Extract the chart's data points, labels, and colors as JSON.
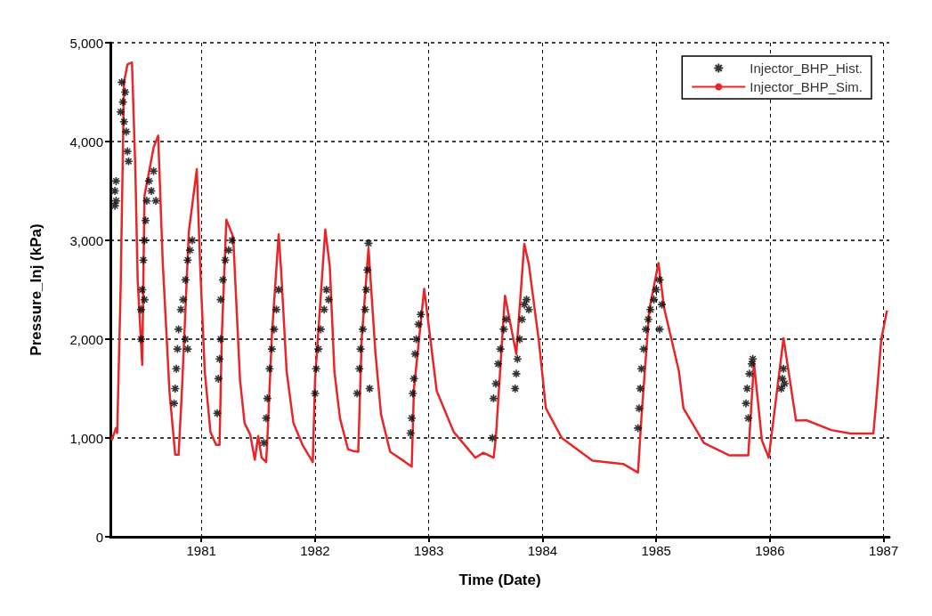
{
  "chart_data": {
    "type": "line",
    "xlabel": "Time (Date)",
    "ylabel": "Pressure_Inj (kPa)",
    "xlim": [
      1980.2,
      1987.05
    ],
    "xticks": [
      1981,
      1982,
      1983,
      1984,
      1985,
      1986,
      1987
    ],
    "ylim": [
      0,
      5000
    ],
    "yticks": [
      0,
      {
        "value": 1000,
        "label": "1,000"
      },
      {
        "value": 2000,
        "label": "2,000"
      },
      {
        "value": 3000,
        "label": "3,000"
      },
      {
        "value": 4000,
        "label": "4,000"
      },
      {
        "value": 5000,
        "label": "5,000"
      }
    ],
    "grid": true,
    "legend": "top right",
    "series": [
      {
        "name": "Injector_BHP_Hist.",
        "type": "scatter",
        "marker": "cross",
        "color": "#000000",
        "x": [
          1980.24,
          1980.24,
          1980.25,
          1980.25,
          1980.29,
          1980.3,
          1980.31,
          1980.32,
          1980.33,
          1980.34,
          1980.35,
          1980.36,
          1980.47,
          1980.47,
          1980.48,
          1980.49,
          1980.5,
          1980.51,
          1980.52,
          1980.54,
          1980.56,
          1980.58,
          1980.6,
          1980.5,
          1980.76,
          1980.77,
          1980.78,
          1980.79,
          1980.8,
          1980.82,
          1980.84,
          1980.86,
          1980.88,
          1980.9,
          1980.92,
          1980.86,
          1980.88,
          1981.14,
          1981.15,
          1981.16,
          1981.17,
          1981.17,
          1981.19,
          1981.21,
          1981.24,
          1981.27,
          1981.55,
          1981.57,
          1981.58,
          1981.6,
          1981.62,
          1981.64,
          1981.66,
          1981.68,
          1982.0,
          1982.01,
          1982.03,
          1982.05,
          1982.08,
          1982.1,
          1982.12,
          1982.37,
          1982.39,
          1982.4,
          1982.42,
          1982.44,
          1982.45,
          1982.46,
          1982.47,
          1982.48,
          1982.84,
          1982.85,
          1982.86,
          1982.87,
          1982.88,
          1982.89,
          1982.91,
          1982.93,
          1983.56,
          1983.57,
          1983.59,
          1983.61,
          1983.63,
          1983.66,
          1983.68,
          1983.76,
          1983.77,
          1983.78,
          1983.8,
          1983.82,
          1983.84,
          1983.86,
          1983.88,
          1984.84,
          1984.85,
          1984.86,
          1984.87,
          1984.89,
          1984.91,
          1984.93,
          1984.95,
          1984.98,
          1985.0,
          1985.03,
          1985.05,
          1985.03,
          1985.79,
          1985.8,
          1985.82,
          1985.84,
          1985.85,
          1985.81,
          1986.1,
          1986.11,
          1986.12,
          1986.13
        ],
        "values": [
          3350,
          3500,
          3600,
          3400,
          4300,
          4600,
          4400,
          4200,
          4500,
          4100,
          3900,
          3800,
          2000,
          2300,
          2500,
          2800,
          3000,
          3200,
          3400,
          3600,
          3500,
          3700,
          3400,
          2400,
          1350,
          1500,
          1700,
          1900,
          2100,
          2300,
          2400,
          2600,
          2800,
          2900,
          3000,
          2000,
          1900,
          1250,
          1600,
          1800,
          2000,
          2400,
          2600,
          2800,
          2900,
          3000,
          950,
          1200,
          1400,
          1700,
          1900,
          2100,
          2300,
          2500,
          1450,
          1700,
          1900,
          2100,
          2300,
          2500,
          2400,
          1450,
          1700,
          1900,
          2100,
          2300,
          2500,
          2700,
          2970,
          1500,
          1050,
          1200,
          1450,
          1600,
          1850,
          2000,
          2150,
          2250,
          1000,
          1400,
          1550,
          1750,
          1900,
          2100,
          2200,
          1500,
          1650,
          1800,
          2000,
          2200,
          2350,
          2400,
          2300,
          1100,
          1300,
          1500,
          1700,
          1900,
          2100,
          2200,
          2300,
          2400,
          2500,
          2600,
          2350,
          2100,
          1350,
          1500,
          1650,
          1750,
          1800,
          1200,
          1500,
          1600,
          1700,
          1550
        ]
      },
      {
        "name": "Injector_BHP_Sim.",
        "marker": "none",
        "line_style": "solid",
        "color": "#e8262a",
        "x": [
          1980.21,
          1980.25,
          1980.26,
          1980.29,
          1980.32,
          1980.35,
          1980.39,
          1980.42,
          1980.44,
          1980.48,
          1980.5,
          1980.58,
          1980.62,
          1980.66,
          1980.72,
          1980.77,
          1980.8,
          1980.83,
          1980.89,
          1980.96,
          1980.99,
          1981.03,
          1981.08,
          1981.13,
          1981.16,
          1981.18,
          1981.22,
          1981.28,
          1981.34,
          1981.38,
          1981.43,
          1981.47,
          1981.5,
          1981.53,
          1981.57,
          1981.58,
          1981.62,
          1981.68,
          1981.7,
          1981.75,
          1981.81,
          1981.89,
          1981.98,
          1982.0,
          1982.09,
          1982.13,
          1982.17,
          1982.22,
          1982.29,
          1982.33,
          1982.38,
          1982.41,
          1982.47,
          1982.53,
          1982.58,
          1982.66,
          1982.79,
          1982.85,
          1982.87,
          1982.96,
          1983.07,
          1983.22,
          1983.41,
          1983.48,
          1983.57,
          1983.59,
          1983.67,
          1983.77,
          1983.84,
          1983.88,
          1983.97,
          1984.03,
          1984.17,
          1984.44,
          1984.71,
          1984.84,
          1984.87,
          1984.94,
          1985.02,
          1985.07,
          1985.2,
          1985.24,
          1985.42,
          1985.64,
          1985.81,
          1985.86,
          1985.93,
          1985.99,
          1986.12,
          1986.23,
          1986.32,
          1986.54,
          1986.71,
          1986.91,
          1986.93,
          1986.98,
          1987.03
        ],
        "values": [
          975,
          1100,
          1050,
          2500,
          4600,
          4780,
          4800,
          3700,
          2600,
          1740,
          3450,
          3940,
          4060,
          2790,
          1465,
          830,
          830,
          1500,
          3090,
          3720,
          2730,
          1675,
          1060,
          930,
          930,
          2030,
          3210,
          3035,
          1590,
          1150,
          1035,
          780,
          1020,
          800,
          755,
          975,
          2030,
          3060,
          2730,
          1675,
          1150,
          930,
          755,
          1590,
          3110,
          2730,
          1675,
          1195,
          885,
          870,
          860,
          2000,
          2920,
          1880,
          1240,
          860,
          760,
          710,
          1500,
          2510,
          1475,
          1060,
          800,
          850,
          800,
          1000,
          2440,
          1850,
          2965,
          2760,
          1965,
          1300,
          1000,
          770,
          737,
          650,
          1200,
          2300,
          2770,
          2315,
          1675,
          1300,
          950,
          825,
          825,
          1760,
          975,
          800,
          2010,
          1175,
          1180,
          1080,
          1045,
          1045,
          1300,
          2000,
          2290
        ]
      }
    ]
  }
}
